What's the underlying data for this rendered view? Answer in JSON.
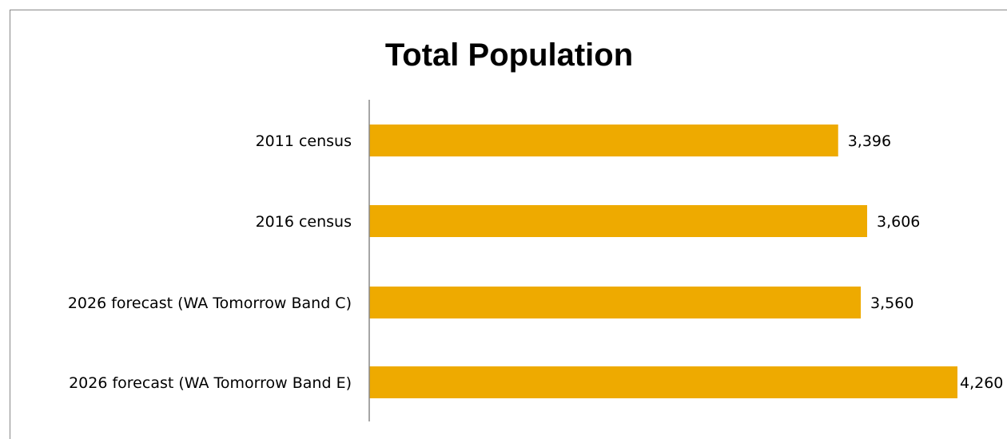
{
  "chart_data": {
    "type": "bar",
    "orientation": "horizontal",
    "title": "Total Population",
    "xlabel": "",
    "ylabel": "",
    "categories": [
      "2011 census",
      "2016 census",
      "2026 forecast (WA Tomorrow Band C)",
      "2026 forecast (WA Tomorrow Band E)"
    ],
    "values": [
      3396,
      3606,
      3560,
      4260
    ],
    "value_labels": [
      "3,396",
      "3,606",
      "3,560",
      "4,260"
    ],
    "xlim": [
      0,
      4260
    ],
    "grid": false,
    "legend": "none",
    "bar_color": "#EEAA00"
  }
}
